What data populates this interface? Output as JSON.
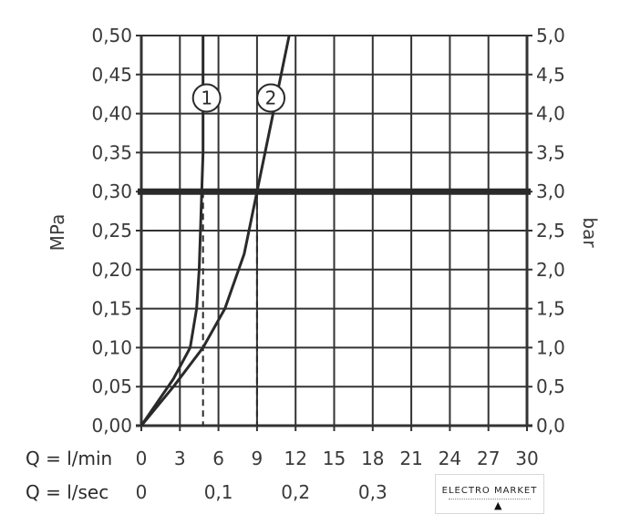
{
  "chart_data": {
    "type": "line",
    "ylabel_left": "MPa",
    "ylabel_right": "bar",
    "ylim": [
      0,
      0.5
    ],
    "ylim_right": [
      0,
      5.0
    ],
    "yticks_left": [
      "0,00",
      "0,05",
      "0,10",
      "0,15",
      "0,20",
      "0,25",
      "0,30",
      "0,35",
      "0,40",
      "0,45",
      "0,50"
    ],
    "yticks_right": [
      "0,0",
      "0,5",
      "1,0",
      "1,5",
      "2,0",
      "2,5",
      "3,0",
      "3,5",
      "4,0",
      "4,5",
      "5,0"
    ],
    "x_rows": [
      {
        "label": "Q = l/min",
        "ticks": [
          "0",
          "3",
          "6",
          "9",
          "12",
          "15",
          "18",
          "21",
          "24",
          "27",
          "30"
        ],
        "positions": [
          0,
          3,
          6,
          9,
          12,
          15,
          18,
          21,
          24,
          27,
          30
        ]
      },
      {
        "label": "Q = l/sec",
        "ticks": [
          "0",
          "0,1",
          "0,2",
          "0,3"
        ],
        "positions": [
          0,
          6,
          12,
          18
        ]
      }
    ],
    "xlim": [
      0,
      30
    ],
    "grid": true,
    "reference_line": {
      "y": 0.3
    },
    "series": [
      {
        "marker": "1",
        "x": [
          0,
          2.5,
          3.8,
          4.3,
          4.5,
          4.6,
          4.7,
          4.8,
          4.8,
          4.8
        ],
        "y": [
          0,
          0.06,
          0.1,
          0.15,
          0.2,
          0.25,
          0.3,
          0.35,
          0.45,
          0.5
        ],
        "drop_x": 4.8
      },
      {
        "marker": "2",
        "x": [
          0,
          2.5,
          4.8,
          6.5,
          8.0,
          9.0,
          10.0,
          11.0,
          11.5
        ],
        "y": [
          0,
          0.05,
          0.1,
          0.15,
          0.22,
          0.3,
          0.38,
          0.46,
          0.5
        ],
        "drop_x": 9.0
      }
    ]
  },
  "watermark": {
    "brand": "ELECTRO MARKET"
  }
}
